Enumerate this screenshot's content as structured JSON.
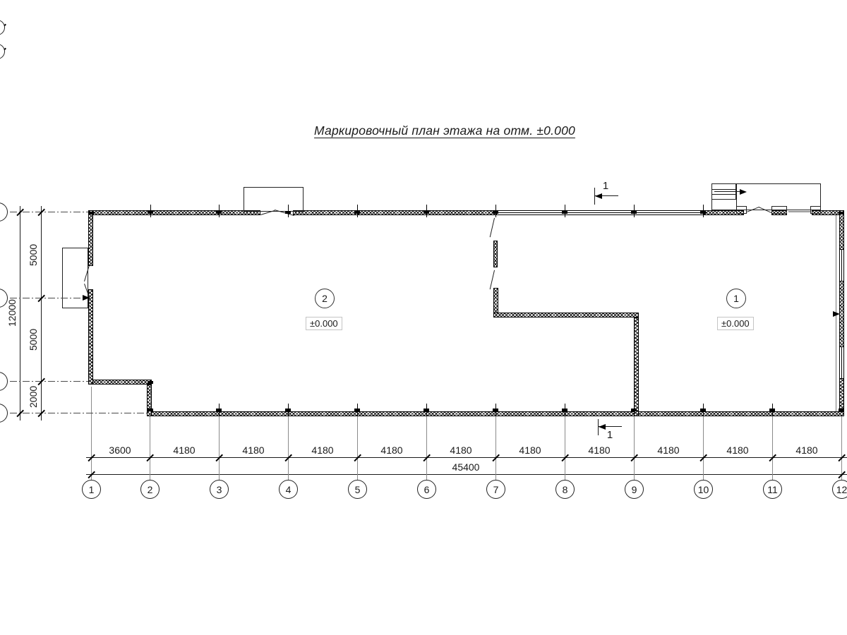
{
  "title": "Маркировочный план этажа на отм. ±0.000",
  "section_marks": {
    "top_label": "1",
    "bottom_label": "1"
  },
  "rooms": [
    {
      "number": "2",
      "elevation": "±0.000"
    },
    {
      "number": "1",
      "elevation": "±0.000"
    }
  ],
  "grid_bubbles": [
    "1",
    "2",
    "3",
    "4",
    "5",
    "6",
    "7",
    "8",
    "9",
    "10",
    "11",
    "12"
  ],
  "dimensions": {
    "bottom_segments": [
      "3600",
      "4180",
      "4180",
      "4180",
      "4180",
      "4180",
      "4180",
      "4180",
      "4180",
      "4180",
      "4180"
    ],
    "bottom_total": "45400",
    "left_segments": [
      "5000",
      "5000",
      "2000"
    ],
    "left_total": "12000"
  }
}
